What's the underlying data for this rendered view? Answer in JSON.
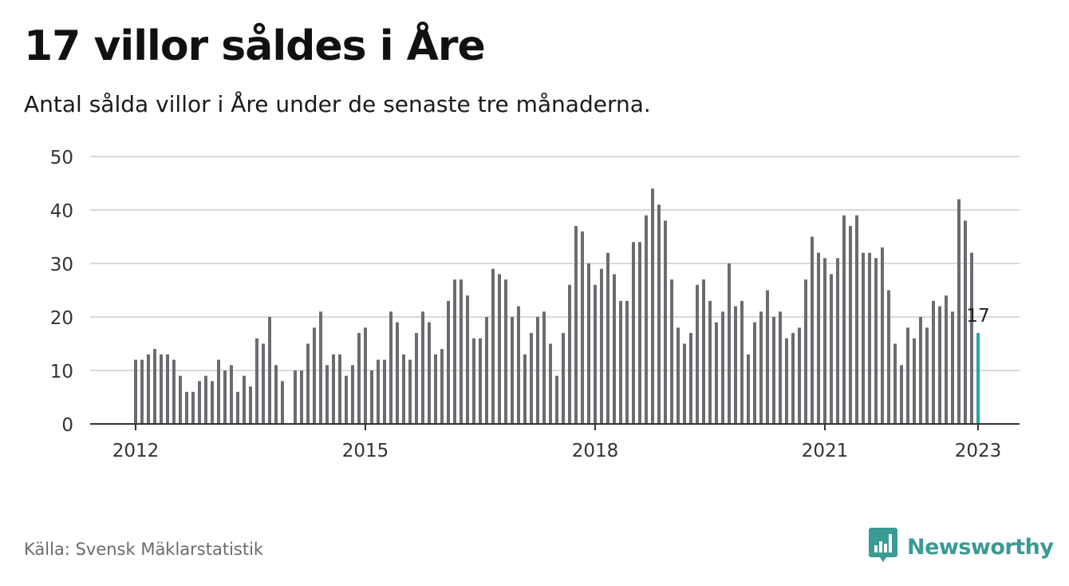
{
  "header": {
    "title": "17 villor såldes i Åre",
    "subtitle": "Antal sålda villor i Åre under de senaste tre månaderna."
  },
  "footer": {
    "source": "Källa: Svensk Mäklarstatistik",
    "brand": "Newsworthy"
  },
  "colors": {
    "bar": "#6b6b70",
    "highlight": "#26a69a",
    "grid": "#d9d9d9",
    "brand": "#3a9a94"
  },
  "icons": {
    "brand_logo": "bar-chart-speech-bubble-icon"
  },
  "chart_data": {
    "type": "bar",
    "title": "17 villor såldes i Åre",
    "xlabel": "",
    "ylabel": "",
    "ylim": [
      0,
      50
    ],
    "yticks": [
      0,
      10,
      20,
      30,
      40,
      50
    ],
    "xticks": [
      "2012",
      "2015",
      "2018",
      "2021",
      "2023"
    ],
    "grid": true,
    "start": "2012-01",
    "frequency": "monthly",
    "highlight": {
      "period": "2023-01",
      "value": 17,
      "label": "17"
    },
    "values": [
      12,
      12,
      13,
      14,
      13,
      13,
      12,
      9,
      6,
      6,
      8,
      9,
      8,
      12,
      10,
      11,
      6,
      9,
      7,
      16,
      15,
      20,
      11,
      8,
      null,
      10,
      10,
      15,
      18,
      21,
      11,
      13,
      13,
      9,
      11,
      17,
      18,
      10,
      12,
      12,
      21,
      19,
      13,
      12,
      17,
      21,
      19,
      13,
      14,
      23,
      27,
      27,
      24,
      16,
      16,
      20,
      29,
      28,
      27,
      20,
      22,
      13,
      17,
      20,
      21,
      15,
      9,
      17,
      26,
      37,
      36,
      30,
      26,
      29,
      32,
      28,
      23,
      23,
      34,
      34,
      39,
      44,
      41,
      38,
      27,
      18,
      15,
      17,
      26,
      27,
      23,
      19,
      21,
      30,
      22,
      23,
      13,
      19,
      21,
      25,
      20,
      21,
      16,
      17,
      18,
      27,
      35,
      32,
      31,
      28,
      31,
      39,
      37,
      39,
      32,
      32,
      31,
      33,
      25,
      15,
      11,
      18,
      16,
      20,
      18,
      23,
      22,
      24,
      21,
      42,
      38,
      32,
      17
    ]
  }
}
